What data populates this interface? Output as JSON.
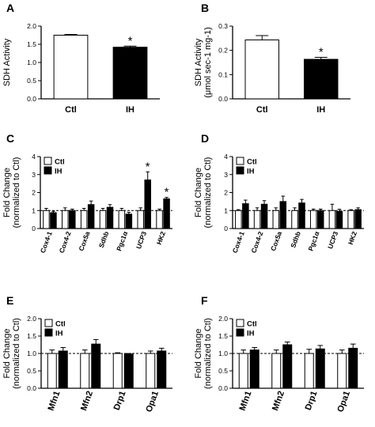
{
  "chart_data": [
    {
      "panel": "A",
      "type": "bar",
      "ylabel": "SDH Activity",
      "ylabel2": "",
      "categories": [
        "Ctl",
        "IH"
      ],
      "values": [
        1.75,
        1.42
      ],
      "errors": [
        0.02,
        0.03
      ],
      "colors": [
        "#ffffff",
        "#000000"
      ],
      "stars": [
        "",
        "*"
      ],
      "ylim": [
        0,
        2.0
      ],
      "yticks": [
        "0.0",
        "0.5",
        "1.0",
        "1.5",
        "2.0"
      ],
      "dashed_at": null,
      "legend": []
    },
    {
      "panel": "B",
      "type": "bar",
      "ylabel": "SDH Activity",
      "ylabel2": "(μmol sec-1 mg-1)",
      "categories": [
        "Ctl",
        "IH"
      ],
      "values": [
        0.243,
        0.163
      ],
      "errors": [
        0.018,
        0.008
      ],
      "colors": [
        "#ffffff",
        "#000000"
      ],
      "stars": [
        "",
        "*"
      ],
      "ylim": [
        0,
        0.3
      ],
      "yticks": [
        "0.0",
        "0.1",
        "0.2",
        "0.3"
      ],
      "dashed_at": null,
      "legend": []
    },
    {
      "panel": "C",
      "type": "bar",
      "ylabel": "Fold Change",
      "ylabel2": "(normalized to Ctl)",
      "categories": [
        "Cox4-1",
        "Cox4-2",
        "Cox5a",
        "Sdhb",
        "Pgc1α",
        "UCP3",
        "HK2"
      ],
      "series": [
        {
          "name": "Ctl",
          "values": [
            1.0,
            1.0,
            1.0,
            1.0,
            1.0,
            1.0,
            1.0
          ],
          "errors": [
            0.12,
            0.15,
            0.12,
            0.12,
            0.12,
            0.15,
            0.08
          ]
        },
        {
          "name": "IH",
          "values": [
            0.88,
            1.0,
            1.33,
            1.18,
            0.8,
            2.7,
            1.65
          ],
          "errors": [
            0.08,
            0.08,
            0.2,
            0.15,
            0.1,
            0.45,
            0.08
          ]
        }
      ],
      "stars": [
        "",
        "",
        "",
        "",
        "",
        "*",
        "*"
      ],
      "ylim": [
        0,
        4
      ],
      "yticks": [
        "0",
        "1",
        "2",
        "3",
        "4"
      ],
      "dashed_at": 1,
      "legend": [
        "Ctl",
        "IH"
      ]
    },
    {
      "panel": "D",
      "type": "bar",
      "ylabel": "Fold Change",
      "ylabel2": "(normalized to Ctl)",
      "categories": [
        "Cox4-1",
        "Cox4-2",
        "Cox5a",
        "Sdhb",
        "Pgc1α",
        "UCP3",
        "HK2"
      ],
      "series": [
        {
          "name": "Ctl",
          "values": [
            1.0,
            1.0,
            1.0,
            1.0,
            1.0,
            1.0,
            1.0
          ],
          "errors": [
            0.05,
            0.15,
            0.15,
            0.15,
            0.08,
            0.35,
            0.05
          ]
        },
        {
          "name": "IH",
          "values": [
            1.38,
            1.35,
            1.5,
            1.42,
            1.0,
            0.95,
            1.05
          ],
          "errors": [
            0.2,
            0.2,
            0.3,
            0.2,
            0.08,
            0.12,
            0.1
          ]
        }
      ],
      "stars": [
        "",
        "",
        "",
        "",
        "",
        "",
        ""
      ],
      "ylim": [
        0,
        4
      ],
      "yticks": [
        "0",
        "1",
        "2",
        "3",
        "4"
      ],
      "dashed_at": 1,
      "legend": [
        "Ctl",
        "IH"
      ]
    },
    {
      "panel": "E",
      "type": "bar",
      "ylabel": "Fold Change",
      "ylabel2": "(normalized to Ctl)",
      "categories": [
        "Mfn1",
        "Mfn2",
        "Drp1",
        "Opa1"
      ],
      "series": [
        {
          "name": "Ctl",
          "values": [
            1.0,
            1.0,
            1.0,
            1.0
          ],
          "errors": [
            0.1,
            0.1,
            0.02,
            0.07
          ]
        },
        {
          "name": "IH",
          "values": [
            1.07,
            1.27,
            0.98,
            1.07
          ],
          "errors": [
            0.1,
            0.13,
            0.02,
            0.08
          ]
        }
      ],
      "stars": [
        "",
        "",
        "",
        ""
      ],
      "ylim": [
        0,
        2.0
      ],
      "yticks": [
        "0.0",
        "0.5",
        "1.0",
        "1.5",
        "2.0"
      ],
      "dashed_at": 1,
      "legend": [
        "Ctl",
        "IH"
      ]
    },
    {
      "panel": "F",
      "type": "bar",
      "ylabel": "Fold Change",
      "ylabel2": "(normalized to Ctl)",
      "categories": [
        "Mfn1",
        "Mfn2",
        "Drp1",
        "Opa1"
      ],
      "series": [
        {
          "name": "Ctl",
          "values": [
            1.0,
            1.0,
            1.0,
            1.0
          ],
          "errors": [
            0.1,
            0.1,
            0.12,
            0.1
          ]
        },
        {
          "name": "IH",
          "values": [
            1.1,
            1.25,
            1.13,
            1.15
          ],
          "errors": [
            0.07,
            0.08,
            0.1,
            0.12
          ]
        }
      ],
      "stars": [
        "",
        "",
        "",
        ""
      ],
      "ylim": [
        0,
        2.0
      ],
      "yticks": [
        "0.0",
        "0.5",
        "1.0",
        "1.5",
        "2.0"
      ],
      "dashed_at": 1,
      "legend": [
        "Ctl",
        "IH"
      ]
    }
  ]
}
